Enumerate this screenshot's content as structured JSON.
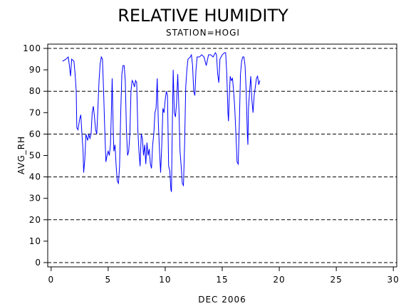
{
  "chart_data": {
    "type": "line",
    "title": "RELATIVE HUMIDITY",
    "subtitle": "STATION=HOGI",
    "y_label": "AVG_RH",
    "x_label": "DEC 2006",
    "xlim": [
      -0.3,
      30.3
    ],
    "xticks": [
      0,
      5,
      10,
      15,
      20,
      25,
      30
    ],
    "ylim": [
      -2,
      102
    ],
    "yticks": [
      0,
      10,
      20,
      30,
      40,
      50,
      60,
      70,
      80,
      90,
      100
    ],
    "hlines": [
      0,
      20,
      40,
      60,
      80,
      100
    ],
    "series": [
      {
        "name": "AVG_RH",
        "color": "#0000ff",
        "x": [
          1.0,
          1.3,
          1.5,
          1.6,
          1.7,
          1.8,
          2.0,
          2.1,
          2.2,
          2.25,
          2.35,
          2.5,
          2.6,
          2.7,
          2.8,
          2.85,
          2.95,
          3.05,
          3.2,
          3.3,
          3.4,
          3.5,
          3.6,
          3.7,
          3.8,
          3.9,
          4.0,
          4.1,
          4.2,
          4.3,
          4.4,
          4.5,
          4.6,
          4.7,
          4.8,
          4.9,
          5.0,
          5.1,
          5.2,
          5.3,
          5.35,
          5.45,
          5.5,
          5.6,
          5.7,
          5.8,
          5.9,
          6.0,
          6.1,
          6.2,
          6.3,
          6.4,
          6.5,
          6.6,
          6.7,
          6.8,
          6.9,
          7.0,
          7.1,
          7.2,
          7.3,
          7.4,
          7.5,
          7.6,
          7.7,
          7.8,
          7.9,
          8.0,
          8.1,
          8.2,
          8.3,
          8.4,
          8.5,
          8.6,
          8.7,
          8.8,
          8.9,
          9.0,
          9.1,
          9.2,
          9.3,
          9.4,
          9.5,
          9.6,
          9.7,
          9.8,
          9.9,
          10.0,
          10.1,
          10.2,
          10.3,
          10.4,
          10.5,
          10.55,
          10.6,
          10.7,
          10.8,
          10.9,
          11.0,
          11.1,
          11.2,
          11.3,
          11.4,
          11.5,
          11.6,
          11.7,
          11.8,
          11.9,
          12.0,
          12.2,
          12.3,
          12.4,
          12.5,
          12.6,
          12.7,
          12.8,
          13.0,
          13.2,
          13.4,
          13.6,
          13.8,
          14.0,
          14.2,
          14.4,
          14.5,
          14.6,
          14.7,
          14.8,
          15.0,
          15.2,
          15.3,
          15.4,
          15.5,
          15.55,
          15.6,
          15.7,
          15.8,
          15.9,
          16.0,
          16.1,
          16.2,
          16.3,
          16.4,
          16.5,
          16.6,
          16.7,
          16.8,
          16.9,
          17.0,
          17.1,
          17.2,
          17.25,
          17.3,
          17.4,
          17.5,
          17.6,
          17.7,
          17.8,
          17.9,
          18.0,
          18.1,
          18.2,
          18.3
        ],
        "values": [
          94,
          95,
          96,
          92,
          87,
          95,
          94,
          88,
          80,
          63,
          62,
          67,
          69,
          60,
          52,
          42,
          48,
          60,
          57,
          60,
          58,
          60,
          70,
          73,
          68,
          62,
          60,
          72,
          85,
          93,
          96,
          95,
          80,
          62,
          47,
          50,
          52,
          50,
          55,
          74,
          86,
          60,
          52,
          55,
          45,
          38,
          37,
          45,
          70,
          88,
          92,
          92,
          85,
          62,
          50,
          52,
          60,
          80,
          85,
          84,
          82,
          85,
          84,
          62,
          52,
          45,
          60,
          58,
          50,
          55,
          46,
          56,
          50,
          53,
          46,
          44,
          55,
          60,
          70,
          72,
          86,
          65,
          52,
          42,
          55,
          72,
          70,
          76,
          80,
          78,
          45,
          43,
          34,
          33,
          55,
          90,
          70,
          68,
          75,
          88,
          72,
          52,
          45,
          37,
          36,
          55,
          82,
          90,
          95,
          96,
          97,
          92,
          80,
          78,
          90,
          96,
          96,
          97,
          96,
          92,
          97,
          97,
          96,
          98,
          97,
          88,
          84,
          95,
          97,
          98,
          98,
          88,
          70,
          66,
          75,
          87,
          85,
          86,
          80,
          72,
          60,
          47,
          46,
          65,
          88,
          94,
          96,
          96,
          92,
          80,
          60,
          55,
          72,
          80,
          87,
          76,
          70,
          78,
          82,
          86,
          87,
          83,
          85
        ]
      }
    ]
  }
}
